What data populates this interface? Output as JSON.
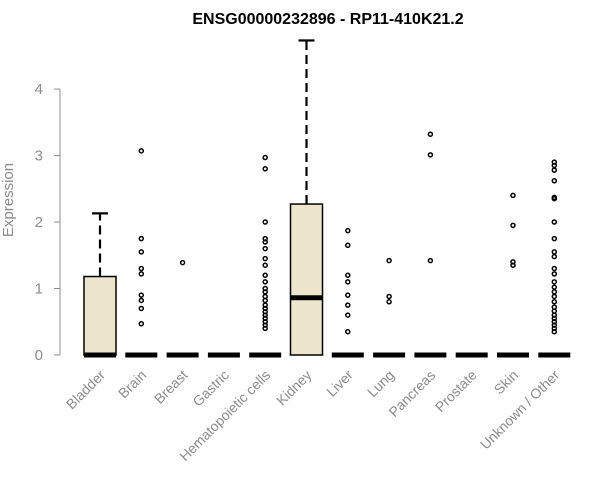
{
  "chart_data": {
    "type": "box",
    "title": "ENSG00000232896 - RP11-410K21.2",
    "ylabel": "Expression",
    "xlabel": "",
    "ylim": [
      0,
      4.75
    ],
    "yticks": [
      0,
      1,
      2,
      3,
      4
    ],
    "colors": {
      "box_fill": "#ede6cc",
      "stroke": "#000000",
      "axis": "#8c8c8c"
    },
    "categories": [
      "Bladder",
      "Brain",
      "Breast",
      "Gastric",
      "Hematopoietic cells",
      "Kidney",
      "Liver",
      "Lung",
      "Pancreas",
      "Prostate",
      "Skin",
      "Unknown / Other"
    ],
    "boxes": [
      {
        "name": "Bladder",
        "q1": 0,
        "median": 0,
        "q3": 1.18,
        "whisker_low": 0,
        "whisker_high": 2.13,
        "outliers": []
      },
      {
        "name": "Brain",
        "q1": 0,
        "median": 0,
        "q3": 0,
        "whisker_low": 0,
        "whisker_high": 0,
        "outliers": [
          3.07,
          1.75,
          1.55,
          1.3,
          1.22,
          0.9,
          0.82,
          0.7,
          0.47
        ]
      },
      {
        "name": "Breast",
        "q1": 0,
        "median": 0,
        "q3": 0,
        "whisker_low": 0,
        "whisker_high": 0,
        "outliers": [
          1.39
        ]
      },
      {
        "name": "Gastric",
        "q1": 0,
        "median": 0,
        "q3": 0,
        "whisker_low": 0,
        "whisker_high": 0,
        "outliers": []
      },
      {
        "name": "Hematopoietic cells",
        "q1": 0,
        "median": 0,
        "q3": 0,
        "whisker_low": 0,
        "whisker_high": 0,
        "outliers": [
          2.97,
          2.8,
          2.0,
          1.75,
          1.7,
          1.6,
          1.45,
          1.35,
          1.2,
          1.1,
          1.0,
          0.95,
          0.88,
          0.82,
          0.75,
          0.7,
          0.65,
          0.6,
          0.55,
          0.5,
          0.45,
          0.4
        ]
      },
      {
        "name": "Kidney",
        "q1": 0,
        "median": 0.86,
        "q3": 2.27,
        "whisker_low": 0,
        "whisker_high": 4.73,
        "outliers": []
      },
      {
        "name": "Liver",
        "q1": 0,
        "median": 0,
        "q3": 0,
        "whisker_low": 0,
        "whisker_high": 0,
        "outliers": [
          1.87,
          1.65,
          1.2,
          1.1,
          0.9,
          0.75,
          0.6,
          0.35
        ]
      },
      {
        "name": "Lung",
        "q1": 0,
        "median": 0,
        "q3": 0,
        "whisker_low": 0,
        "whisker_high": 0,
        "outliers": [
          1.42,
          0.88,
          0.8
        ]
      },
      {
        "name": "Pancreas",
        "q1": 0,
        "median": 0,
        "q3": 0,
        "whisker_low": 0,
        "whisker_high": 0,
        "outliers": [
          3.32,
          3.01,
          1.42
        ]
      },
      {
        "name": "Prostate",
        "q1": 0,
        "median": 0,
        "q3": 0,
        "whisker_low": 0,
        "whisker_high": 0,
        "outliers": []
      },
      {
        "name": "Skin",
        "q1": 0,
        "median": 0,
        "q3": 0,
        "whisker_low": 0,
        "whisker_high": 0,
        "outliers": [
          2.4,
          1.95,
          1.4,
          1.35
        ]
      },
      {
        "name": "Unknown / Other",
        "q1": 0,
        "median": 0,
        "q3": 0,
        "whisker_low": 0,
        "whisker_high": 0,
        "outliers": [
          2.9,
          2.85,
          2.78,
          2.62,
          2.37,
          2.35,
          2.0,
          1.75,
          1.55,
          1.48,
          1.3,
          1.22,
          1.1,
          1.02,
          0.95,
          0.88,
          0.8,
          0.72,
          0.66,
          0.6,
          0.55,
          0.5,
          0.45,
          0.4,
          0.35
        ]
      }
    ]
  }
}
